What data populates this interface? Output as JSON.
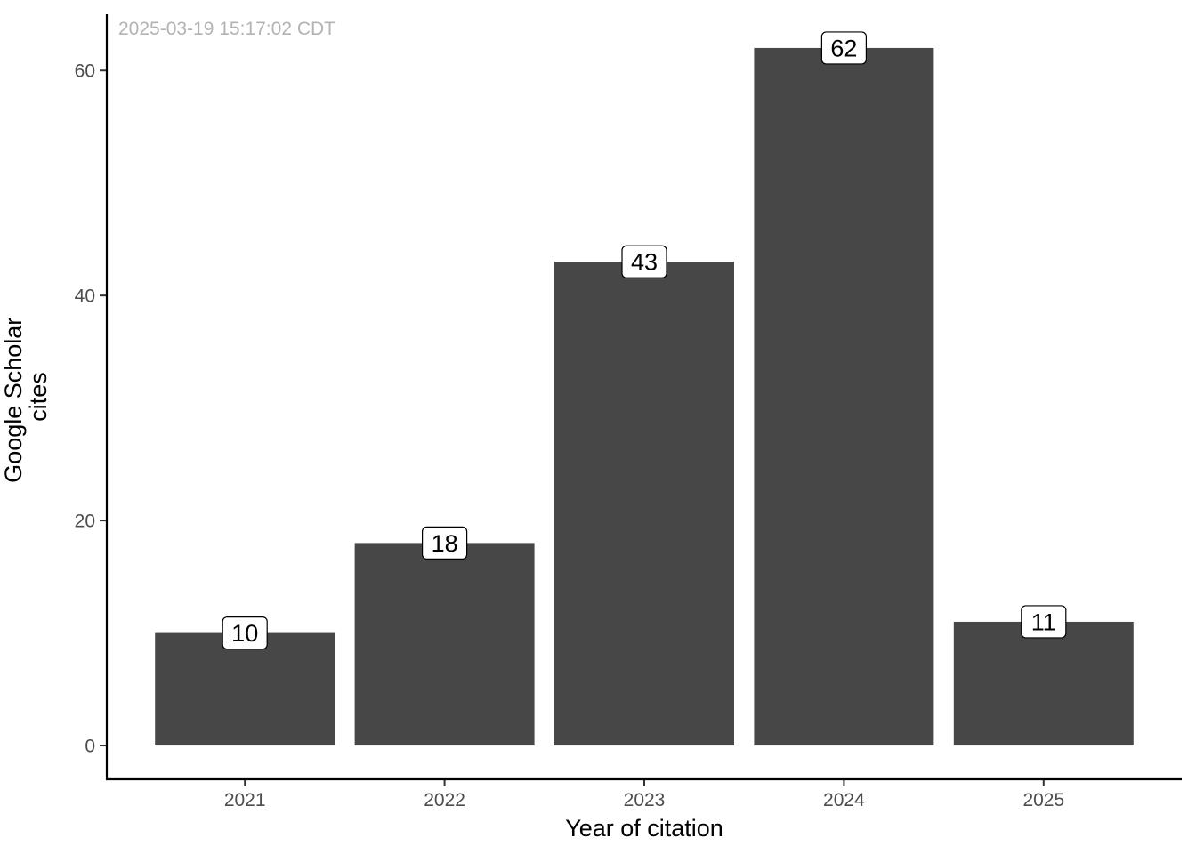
{
  "timestamp": "2025-03-19 15:17:02 CDT",
  "colors": {
    "bar": "#474747",
    "axis": "#000000",
    "tick_text": "#4d4d4d",
    "stamp": "#b3b3b3",
    "label_fill": "#ffffff"
  },
  "chart_data": {
    "type": "bar",
    "categories": [
      "2021",
      "2022",
      "2023",
      "2024",
      "2025"
    ],
    "values": [
      10,
      18,
      43,
      62,
      11
    ],
    "data_labels": [
      "10",
      "18",
      "43",
      "62",
      "11"
    ],
    "xlabel": "Year of citation",
    "ylabel_lines": [
      "Google Scholar",
      "cites"
    ],
    "ylim": [
      -3,
      65
    ],
    "yticks": [
      0,
      20,
      40,
      60
    ],
    "ytick_labels": [
      "0",
      "20",
      "40",
      "60"
    ],
    "grid": false,
    "legend": "none"
  }
}
